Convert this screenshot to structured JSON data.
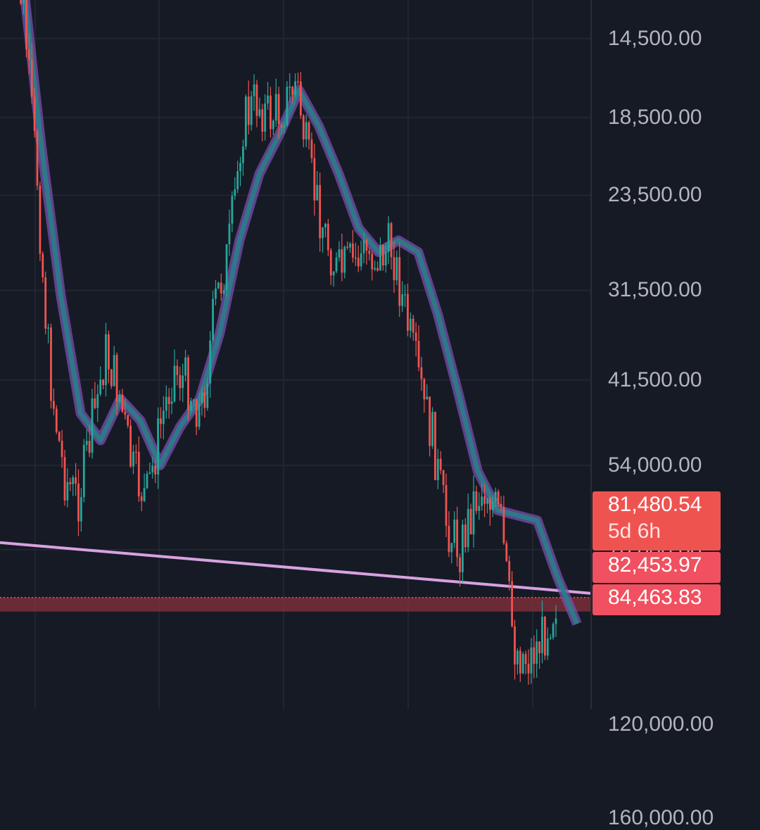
{
  "chart_data": {
    "type": "candlestick",
    "y_axis": {
      "scale": "log",
      "inverted": true,
      "position": "right",
      "tick_labels": [
        "14,500.00",
        "18,500.00",
        "23,500.00",
        "31,500.00",
        "41,500.00",
        "54,000.00",
        "70,000.00",
        "160,000.00"
      ],
      "tick_values": [
        14500,
        18500,
        23500,
        31500,
        41500,
        54000,
        70000,
        160000
      ],
      "range": [
        11500,
        170000
      ]
    },
    "grid": true,
    "price_badges": [
      {
        "value": "81,480.54",
        "sublabel": "5d 6h",
        "color": "#ef5350"
      },
      {
        "value": "82,453.97",
        "color": "#f0505f"
      },
      {
        "value": "84,463.83",
        "color": "#f0505f"
      }
    ],
    "obscured_tick_label": "120,000.00",
    "horizontal_level": {
      "value": 81480.54,
      "color": "#ef5350"
    },
    "trendline": {
      "color": "#d8a2e0",
      "from": 68500,
      "to": 80100
    },
    "moving_average_ribbon": {
      "colors": [
        "#7b4fb0",
        "#2a7e86"
      ],
      "values": [
        11500,
        20000,
        32000,
        46000,
        50000,
        44000,
        47000,
        54000,
        48000,
        44000,
        36000,
        27000,
        22000,
        19500,
        17000,
        19000,
        22000,
        26000,
        28000,
        27000,
        28000,
        34000,
        43000,
        55000,
        62000,
        63000,
        64000,
        76000,
        88000
      ]
    },
    "candles": {
      "up_color": "#26a69a",
      "down_color": "#ef5350",
      "close_path": [
        11500,
        13000,
        22000,
        41500,
        56000,
        60000,
        48000,
        38000,
        43000,
        55000,
        60000,
        48000,
        40000,
        42000,
        46000,
        33000,
        28000,
        19000,
        17500,
        18500,
        18000,
        16500,
        22000,
        26000,
        30000,
        29000,
        28000,
        28500,
        27500,
        34000,
        42000,
        50000,
        65000,
        70000,
        60000,
        58000,
        65000,
        95000,
        98000,
        92000,
        82000
      ]
    }
  }
}
